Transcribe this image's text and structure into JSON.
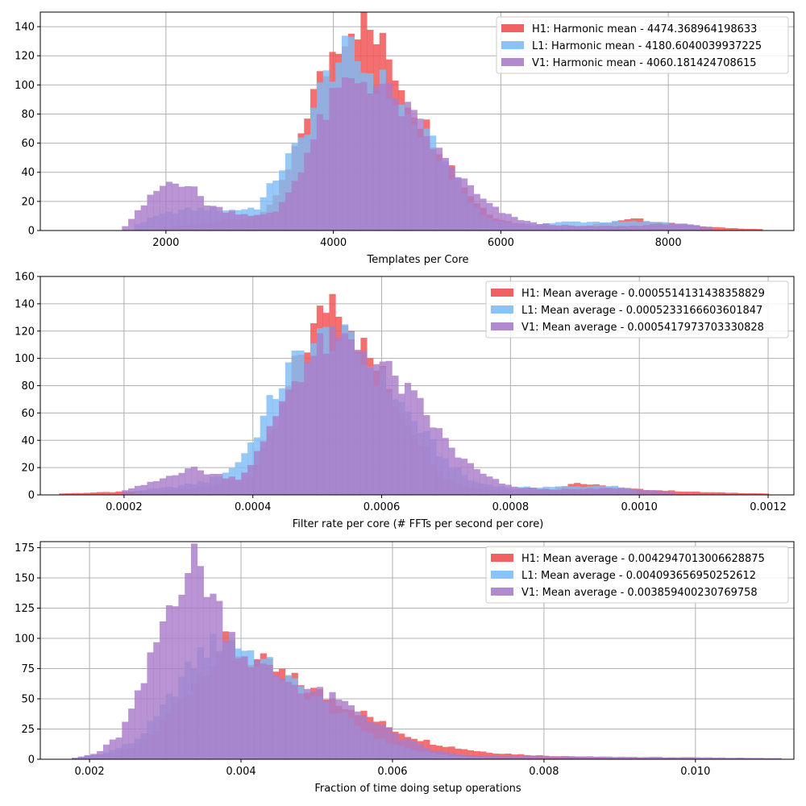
{
  "colors": {
    "H1": "#f15050",
    "L1": "#7fbdf5",
    "V1": "#a97cc9",
    "grid": "#b0b0b0"
  },
  "chart_data": [
    {
      "type": "histogram",
      "xlabel": "Templates per Core",
      "xlim": [
        500,
        9500
      ],
      "ylim": [
        0,
        150
      ],
      "xticks": [
        {
          "value": 2000,
          "label": "2000"
        },
        {
          "value": 4000,
          "label": "4000"
        },
        {
          "value": 6000,
          "label": "6000"
        },
        {
          "value": 8000,
          "label": "8000"
        }
      ],
      "yticks": [
        {
          "value": 0,
          "label": "0"
        },
        {
          "value": 20,
          "label": "20"
        },
        {
          "value": 40,
          "label": "40"
        },
        {
          "value": 60,
          "label": "60"
        },
        {
          "value": 80,
          "label": "80"
        },
        {
          "value": 100,
          "label": "100"
        },
        {
          "value": 120,
          "label": "120"
        },
        {
          "value": 140,
          "label": "140"
        }
      ],
      "legend_position": "top-right",
      "series": [
        {
          "name": "H1: Harmonic mean  - 4474.368964198633",
          "color_key": "H1",
          "x": [
            1700,
            2000,
            2300,
            2600,
            2900,
            3200,
            3500,
            3700,
            3900,
            4100,
            4300,
            4500,
            4700,
            4900,
            5100,
            5300,
            5500,
            5700,
            5900,
            6100,
            6400,
            7000,
            7600,
            8000,
            8600,
            9100
          ],
          "y": [
            0,
            2,
            4,
            6,
            8,
            12,
            45,
            85,
            110,
            138,
            145,
            132,
            115,
            90,
            72,
            55,
            35,
            20,
            10,
            6,
            3,
            3,
            8,
            5,
            2,
            1
          ]
        },
        {
          "name": "L1: Harmonic mean  - 4180.6040039937225",
          "color_key": "L1",
          "x": [
            1600,
            1900,
            2200,
            2500,
            2800,
            3100,
            3400,
            3600,
            3800,
            4000,
            4200,
            4400,
            4600,
            4800,
            5000,
            5200,
            5400,
            5600,
            5800,
            6000,
            6300,
            6800,
            7300,
            7900,
            8400
          ],
          "y": [
            3,
            10,
            14,
            15,
            14,
            16,
            45,
            60,
            90,
            115,
            122,
            110,
            100,
            85,
            70,
            58,
            40,
            22,
            10,
            6,
            4,
            6,
            6,
            6,
            3
          ]
        },
        {
          "name": "V1: Harmonic mean  - 4060.181424708615",
          "color_key": "V1",
          "x": [
            1500,
            1700,
            1900,
            2100,
            2300,
            2500,
            2700,
            2900,
            3100,
            3300,
            3500,
            3700,
            3900,
            4100,
            4300,
            4500,
            4700,
            4900,
            5100,
            5300,
            5500,
            5700,
            5900,
            6100,
            6400,
            6900,
            7500,
            8100,
            8500
          ],
          "y": [
            2,
            15,
            28,
            36,
            30,
            18,
            14,
            12,
            10,
            12,
            30,
            55,
            80,
            98,
            104,
            103,
            90,
            80,
            66,
            50,
            38,
            25,
            16,
            10,
            5,
            3,
            3,
            5,
            2
          ]
        }
      ]
    },
    {
      "type": "histogram",
      "xlabel": "Filter rate per core (# FFTs per second per core)",
      "xlim": [
        7e-05,
        0.00124
      ],
      "ylim": [
        0,
        160
      ],
      "xticks": [
        {
          "value": 0.0002,
          "label": "0.0002"
        },
        {
          "value": 0.0004,
          "label": "0.0004"
        },
        {
          "value": 0.0006,
          "label": "0.0006"
        },
        {
          "value": 0.0008,
          "label": "0.0008"
        },
        {
          "value": 0.001,
          "label": "0.0010"
        },
        {
          "value": 0.0012,
          "label": "0.0012"
        }
      ],
      "yticks": [
        {
          "value": 0,
          "label": "0"
        },
        {
          "value": 20,
          "label": "20"
        },
        {
          "value": 40,
          "label": "40"
        },
        {
          "value": 60,
          "label": "60"
        },
        {
          "value": 80,
          "label": "80"
        },
        {
          "value": 100,
          "label": "100"
        },
        {
          "value": 120,
          "label": "120"
        },
        {
          "value": 140,
          "label": "140"
        },
        {
          "value": 160,
          "label": "160"
        }
      ],
      "legend_position": "top-right",
      "series": [
        {
          "name": "H1: Mean average - 0.0005514131438358829",
          "color_key": "H1",
          "x": [
            0.0001,
            0.00025,
            0.0003,
            0.00035,
            0.0004,
            0.00044,
            0.00047,
            0.0005,
            0.00052,
            0.00054,
            0.00056,
            0.00058,
            0.0006,
            0.00062,
            0.00064,
            0.00066,
            0.00068,
            0.0007,
            0.00074,
            0.0008,
            0.00086,
            0.0009,
            0.00095,
            0.001,
            0.00105,
            0.0011,
            0.0012
          ],
          "y": [
            1,
            3,
            5,
            8,
            15,
            55,
            100,
            125,
            148,
            140,
            118,
            100,
            88,
            70,
            55,
            40,
            25,
            12,
            5,
            4,
            4,
            9,
            6,
            4,
            3,
            2,
            1
          ]
        },
        {
          "name": "L1: Mean average - 0.0005233166603601847",
          "color_key": "L1",
          "x": [
            0.00022,
            0.00028,
            0.00033,
            0.00037,
            0.0004,
            0.00043,
            0.00046,
            0.00049,
            0.00052,
            0.00055,
            0.00058,
            0.00061,
            0.00064,
            0.00067,
            0.0007,
            0.00074,
            0.0008,
            0.00085,
            0.0009,
            0.00095,
            0.001
          ],
          "y": [
            3,
            6,
            10,
            20,
            40,
            70,
            95,
            110,
            118,
            110,
            95,
            80,
            60,
            42,
            25,
            10,
            5,
            6,
            6,
            7,
            3
          ]
        },
        {
          "name": "V1: Mean average - 0.0005417973703330828",
          "color_key": "V1",
          "x": [
            0.0002,
            0.00025,
            0.0003,
            0.00034,
            0.00038,
            0.00042,
            0.00045,
            0.00048,
            0.00051,
            0.00054,
            0.00057,
            0.0006,
            0.00063,
            0.00066,
            0.00069,
            0.00072,
            0.00076,
            0.0008,
            0.00086,
            0.0009,
            0.00096,
            0.001,
            0.00105
          ],
          "y": [
            3,
            10,
            20,
            15,
            12,
            40,
            75,
            95,
            110,
            112,
            108,
            95,
            80,
            65,
            45,
            28,
            14,
            6,
            4,
            4,
            5,
            4,
            2
          ]
        }
      ]
    },
    {
      "type": "histogram",
      "xlabel": "Fraction of time doing setup operations",
      "xlim": [
        0.00135,
        0.0113
      ],
      "ylim": [
        0,
        180
      ],
      "xticks": [
        {
          "value": 0.002,
          "label": "0.002"
        },
        {
          "value": 0.004,
          "label": "0.004"
        },
        {
          "value": 0.006,
          "label": "0.006"
        },
        {
          "value": 0.008,
          "label": "0.008"
        },
        {
          "value": 0.01,
          "label": "0.010"
        }
      ],
      "yticks": [
        {
          "value": 0,
          "label": "0"
        },
        {
          "value": 25,
          "label": "25"
        },
        {
          "value": 50,
          "label": "50"
        },
        {
          "value": 75,
          "label": "75"
        },
        {
          "value": 100,
          "label": "100"
        },
        {
          "value": 125,
          "label": "125"
        },
        {
          "value": 150,
          "label": "150"
        },
        {
          "value": 175,
          "label": "175"
        }
      ],
      "legend_position": "top-right",
      "series": [
        {
          "name": "H1: Mean average - 0.0042947013006628875",
          "color_key": "H1",
          "x": [
            0.0018,
            0.0022,
            0.0026,
            0.0029,
            0.0032,
            0.0035,
            0.0038,
            0.0041,
            0.0044,
            0.0047,
            0.005,
            0.0053,
            0.0056,
            0.0059,
            0.0062,
            0.0065,
            0.0068,
            0.0071,
            0.0074,
            0.0077,
            0.008,
            0.0085,
            0.009,
            0.01
          ],
          "y": [
            1,
            4,
            10,
            25,
            50,
            75,
            95,
            85,
            75,
            65,
            55,
            48,
            38,
            28,
            20,
            14,
            10,
            7,
            5,
            4,
            3,
            2,
            1,
            1
          ]
        },
        {
          "name": "L1: Mean average - 0.004093656950252612",
          "color_key": "L1",
          "x": [
            0.0018,
            0.0022,
            0.0026,
            0.0029,
            0.0032,
            0.0035,
            0.0038,
            0.0041,
            0.0044,
            0.0047,
            0.005,
            0.0053,
            0.0056,
            0.0059,
            0.0062,
            0.0065,
            0.0068,
            0.0072
          ],
          "y": [
            1,
            5,
            15,
            35,
            65,
            90,
            100,
            90,
            75,
            62,
            50,
            38,
            25,
            15,
            9,
            5,
            3,
            1
          ]
        },
        {
          "name": "V1: Mean average - 0.003859400230769758",
          "color_key": "V1",
          "x": [
            0.0018,
            0.0021,
            0.0024,
            0.0027,
            0.003,
            0.0032,
            0.0034,
            0.0036,
            0.0038,
            0.004,
            0.0042,
            0.0044,
            0.0046,
            0.0048,
            0.005,
            0.0052,
            0.0055,
            0.0058,
            0.0061,
            0.0065,
            0.007,
            0.0111
          ],
          "y": [
            1,
            5,
            20,
            60,
            120,
            150,
            165,
            140,
            110,
            90,
            78,
            72,
            66,
            60,
            55,
            50,
            42,
            30,
            18,
            8,
            3,
            1
          ]
        }
      ]
    }
  ]
}
